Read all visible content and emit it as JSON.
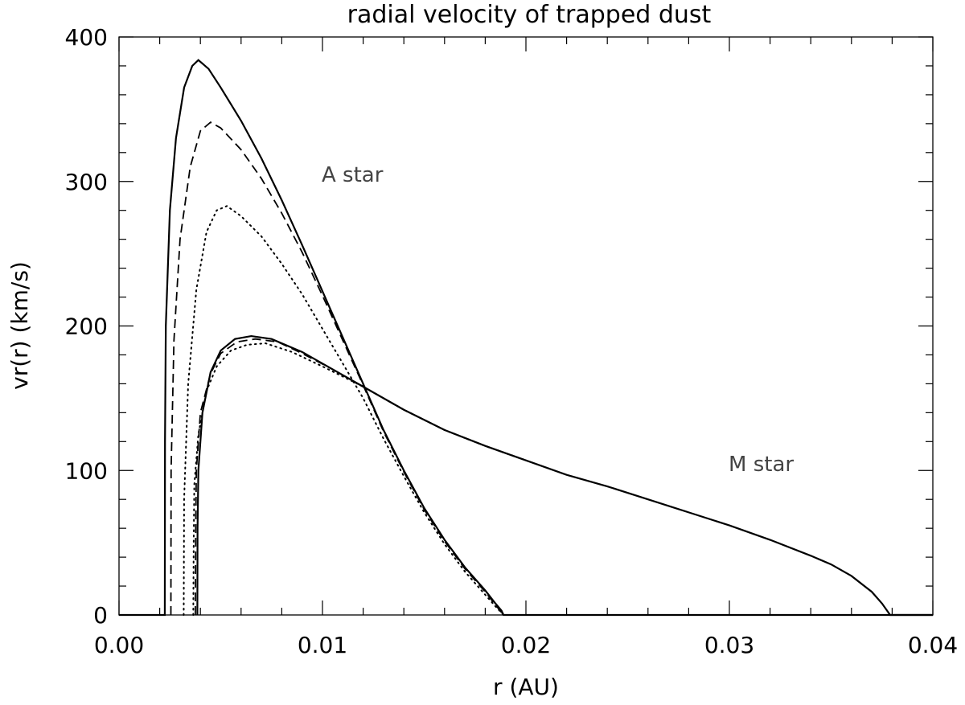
{
  "chart_data": {
    "type": "line",
    "title": "radial velocity of trapped dust",
    "xlabel": "r (AU)",
    "ylabel": "vr(r) (km/s)",
    "xlim": [
      0.0,
      0.04
    ],
    "ylim": [
      0,
      400
    ],
    "grid": false,
    "x_tick_labels": [
      "0.00",
      "0.01",
      "0.02",
      "0.03",
      "0.04"
    ],
    "x_tick_values": [
      0.0,
      0.01,
      0.02,
      0.03,
      0.04
    ],
    "y_tick_labels": [
      "0",
      "100",
      "200",
      "300",
      "400"
    ],
    "y_tick_values": [
      0,
      100,
      200,
      300,
      400
    ],
    "annotations": [
      {
        "text": "A star",
        "x": 0.0108,
        "y": 304
      },
      {
        "text": "M star",
        "x": 0.0308,
        "y": 104
      }
    ],
    "series": [
      {
        "style": "solid",
        "points": [
          [
            0.0,
            0
          ],
          [
            0.00225,
            0
          ],
          [
            0.00226,
            120
          ],
          [
            0.0023,
            200
          ],
          [
            0.0025,
            280
          ],
          [
            0.0028,
            330
          ],
          [
            0.0032,
            365
          ],
          [
            0.0036,
            380
          ],
          [
            0.0039,
            384
          ],
          [
            0.0044,
            378
          ],
          [
            0.005,
            365
          ],
          [
            0.006,
            342
          ],
          [
            0.007,
            316
          ],
          [
            0.008,
            287
          ],
          [
            0.009,
            256
          ],
          [
            0.01,
            224
          ],
          [
            0.011,
            192
          ],
          [
            0.012,
            160
          ],
          [
            0.013,
            128
          ],
          [
            0.014,
            100
          ],
          [
            0.015,
            74
          ],
          [
            0.016,
            52
          ],
          [
            0.017,
            33
          ],
          [
            0.018,
            17
          ],
          [
            0.0185,
            8
          ],
          [
            0.0188,
            3
          ],
          [
            0.0189,
            0
          ],
          [
            0.04,
            0
          ]
        ]
      },
      {
        "style": "dashed",
        "points": [
          [
            0.00255,
            0
          ],
          [
            0.00256,
            100
          ],
          [
            0.0027,
            190
          ],
          [
            0.003,
            260
          ],
          [
            0.0035,
            310
          ],
          [
            0.004,
            335
          ],
          [
            0.0045,
            341
          ],
          [
            0.005,
            337
          ],
          [
            0.006,
            322
          ],
          [
            0.007,
            302
          ],
          [
            0.008,
            278
          ],
          [
            0.009,
            251
          ],
          [
            0.01,
            221
          ],
          [
            0.011,
            190
          ],
          [
            0.012,
            159
          ],
          [
            0.013,
            127
          ],
          [
            0.014,
            99
          ],
          [
            0.015,
            73
          ],
          [
            0.016,
            51
          ],
          [
            0.017,
            32
          ],
          [
            0.018,
            16
          ],
          [
            0.0185,
            7
          ],
          [
            0.0189,
            0
          ]
        ]
      },
      {
        "style": "dotted",
        "points": [
          [
            0.00318,
            0
          ],
          [
            0.0032,
            80
          ],
          [
            0.0034,
            160
          ],
          [
            0.0038,
            225
          ],
          [
            0.0043,
            265
          ],
          [
            0.0048,
            280
          ],
          [
            0.0053,
            283
          ],
          [
            0.006,
            276
          ],
          [
            0.007,
            262
          ],
          [
            0.008,
            243
          ],
          [
            0.009,
            222
          ],
          [
            0.01,
            198
          ],
          [
            0.011,
            174
          ],
          [
            0.012,
            150
          ],
          [
            0.013,
            122
          ],
          [
            0.014,
            96
          ],
          [
            0.015,
            71
          ],
          [
            0.016,
            49
          ],
          [
            0.017,
            30
          ],
          [
            0.018,
            14
          ],
          [
            0.0185,
            6
          ],
          [
            0.0189,
            0
          ]
        ]
      },
      {
        "style": "solid",
        "points": [
          [
            0.00385,
            0
          ],
          [
            0.00386,
            60
          ],
          [
            0.0039,
            100
          ],
          [
            0.0041,
            140
          ],
          [
            0.0045,
            168
          ],
          [
            0.005,
            183
          ],
          [
            0.0057,
            191
          ],
          [
            0.0065,
            193
          ],
          [
            0.0075,
            191
          ],
          [
            0.009,
            182
          ],
          [
            0.0105,
            170
          ],
          [
            0.012,
            158
          ],
          [
            0.014,
            142
          ],
          [
            0.016,
            128
          ],
          [
            0.018,
            117
          ],
          [
            0.02,
            107
          ],
          [
            0.022,
            97
          ],
          [
            0.024,
            89
          ],
          [
            0.026,
            80
          ],
          [
            0.028,
            71
          ],
          [
            0.03,
            62
          ],
          [
            0.032,
            52
          ],
          [
            0.034,
            41
          ],
          [
            0.035,
            35
          ],
          [
            0.036,
            27
          ],
          [
            0.037,
            16
          ],
          [
            0.0375,
            8
          ],
          [
            0.0378,
            2
          ],
          [
            0.0379,
            0
          ],
          [
            0.04,
            0
          ]
        ]
      },
      {
        "style": "dashed",
        "points": [
          [
            0.00375,
            0
          ],
          [
            0.00377,
            60
          ],
          [
            0.0038,
            100
          ],
          [
            0.004,
            140
          ],
          [
            0.0045,
            167
          ],
          [
            0.005,
            181
          ],
          [
            0.0058,
            189
          ],
          [
            0.0067,
            191
          ],
          [
            0.0078,
            189
          ],
          [
            0.009,
            181
          ],
          [
            0.0105,
            170
          ],
          [
            0.012,
            158
          ],
          [
            0.014,
            142
          ],
          [
            0.016,
            128
          ],
          [
            0.018,
            117
          ],
          [
            0.02,
            107
          ]
        ]
      },
      {
        "style": "dotted",
        "points": [
          [
            0.00365,
            0
          ],
          [
            0.00367,
            50
          ],
          [
            0.0037,
            90
          ],
          [
            0.0039,
            125
          ],
          [
            0.0043,
            155
          ],
          [
            0.0048,
            172
          ],
          [
            0.0055,
            183
          ],
          [
            0.0063,
            187
          ],
          [
            0.0072,
            188
          ],
          [
            0.0085,
            182
          ],
          [
            0.01,
            172
          ],
          [
            0.012,
            158
          ],
          [
            0.014,
            142
          ],
          [
            0.016,
            128
          ],
          [
            0.018,
            117
          ],
          [
            0.02,
            107
          ]
        ]
      }
    ]
  }
}
